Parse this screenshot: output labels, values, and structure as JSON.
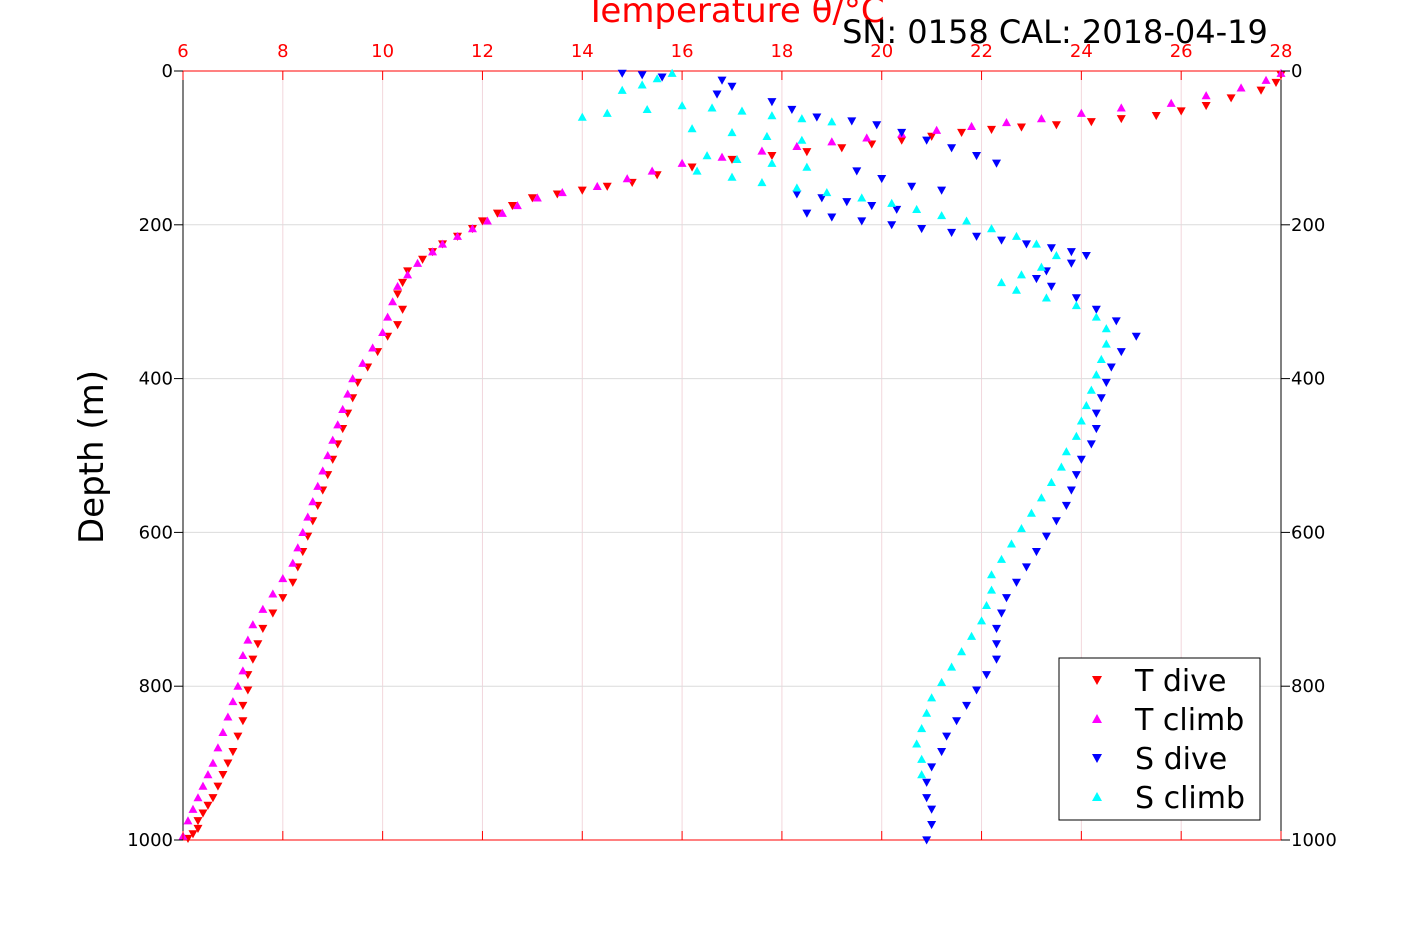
{
  "chart_data": {
    "type": "scatter",
    "title": "SN: 0158  CAL: 2018-04-19",
    "xlabel": "Temperature θ/°C",
    "ylabel": "Depth (m)",
    "xlim": [
      6,
      28
    ],
    "ylim": [
      0,
      1000
    ],
    "y_reversed": true,
    "x_axis_position": "top",
    "x_ticks": [
      6,
      8,
      10,
      12,
      14,
      16,
      18,
      20,
      22,
      24,
      26,
      28
    ],
    "y_ticks": [
      0,
      200,
      400,
      600,
      800,
      1000
    ],
    "grid": true,
    "legend_position": "bottom-right",
    "colors": {
      "x_axis": "#ff0000",
      "grid": "#d9d9d9",
      "frame": "#000000"
    },
    "series": [
      {
        "name": "T dive",
        "marker": "triangle-down",
        "color": "#ff0000",
        "x": [
          28.0,
          27.9,
          27.6,
          27.0,
          26.5,
          26.0,
          25.5,
          24.8,
          24.2,
          23.5,
          22.8,
          22.2,
          21.6,
          21.0,
          20.4,
          19.8,
          19.2,
          18.5,
          17.8,
          17.0,
          16.2,
          15.5,
          15.0,
          14.5,
          14.0,
          13.5,
          13.0,
          12.6,
          12.3,
          12.0,
          11.8,
          11.5,
          11.2,
          11.0,
          10.8,
          10.5,
          10.4,
          10.3,
          10.4,
          10.3,
          10.1,
          9.9,
          9.7,
          9.5,
          9.4,
          9.3,
          9.2,
          9.1,
          9.0,
          8.9,
          8.8,
          8.7,
          8.6,
          8.5,
          8.4,
          8.3,
          8.2,
          8.0,
          7.8,
          7.6,
          7.5,
          7.4,
          7.3,
          7.3,
          7.2,
          7.2,
          7.1,
          7.0,
          6.9,
          6.8,
          6.7,
          6.6,
          6.5,
          6.4,
          6.3,
          6.3,
          6.2,
          6.1
        ],
        "y": [
          5,
          15,
          25,
          35,
          45,
          52,
          58,
          62,
          66,
          70,
          73,
          76,
          80,
          85,
          90,
          95,
          100,
          105,
          110,
          115,
          125,
          135,
          145,
          150,
          155,
          160,
          165,
          175,
          185,
          195,
          205,
          215,
          225,
          235,
          245,
          260,
          275,
          290,
          310,
          330,
          345,
          365,
          385,
          405,
          425,
          445,
          465,
          485,
          505,
          525,
          545,
          565,
          585,
          605,
          625,
          645,
          665,
          685,
          705,
          725,
          745,
          765,
          785,
          805,
          825,
          845,
          865,
          885,
          900,
          915,
          930,
          945,
          955,
          965,
          975,
          985,
          992,
          998
        ]
      },
      {
        "name": "T climb",
        "marker": "triangle-up",
        "color": "#ff00ff",
        "x": [
          28.0,
          27.7,
          27.2,
          26.5,
          25.8,
          24.8,
          24.0,
          23.2,
          22.5,
          21.8,
          21.1,
          20.4,
          19.7,
          19.0,
          18.3,
          17.6,
          16.8,
          16.0,
          15.4,
          14.9,
          14.3,
          13.6,
          13.1,
          12.7,
          12.4,
          12.1,
          11.8,
          11.5,
          11.2,
          11.0,
          10.7,
          10.5,
          10.3,
          10.2,
          10.1,
          10.0,
          9.8,
          9.6,
          9.4,
          9.3,
          9.2,
          9.1,
          9.0,
          8.9,
          8.8,
          8.7,
          8.6,
          8.5,
          8.4,
          8.3,
          8.2,
          8.0,
          7.8,
          7.6,
          7.4,
          7.3,
          7.2,
          7.2,
          7.1,
          7.0,
          6.9,
          6.8,
          6.7,
          6.6,
          6.5,
          6.4,
          6.3,
          6.2,
          6.1,
          6.0
        ],
        "y": [
          3,
          12,
          22,
          32,
          42,
          48,
          55,
          62,
          67,
          72,
          77,
          82,
          87,
          92,
          98,
          104,
          112,
          120,
          130,
          140,
          150,
          158,
          165,
          175,
          185,
          195,
          205,
          215,
          225,
          235,
          250,
          265,
          280,
          300,
          320,
          340,
          360,
          380,
          400,
          420,
          440,
          460,
          480,
          500,
          520,
          540,
          560,
          580,
          600,
          620,
          640,
          660,
          680,
          700,
          720,
          740,
          760,
          780,
          800,
          820,
          840,
          860,
          880,
          900,
          915,
          930,
          945,
          960,
          975,
          995
        ]
      },
      {
        "name": "S dive",
        "marker": "triangle-down",
        "color": "#0000ff",
        "x": [
          14.8,
          15.2,
          15.6,
          16.8,
          17.0,
          16.7,
          17.8,
          18.2,
          18.7,
          19.4,
          19.9,
          20.4,
          20.9,
          21.4,
          21.9,
          22.3,
          19.5,
          20.0,
          20.6,
          21.2,
          18.3,
          18.8,
          19.3,
          19.8,
          20.3,
          18.5,
          19.0,
          19.6,
          20.2,
          20.8,
          21.4,
          21.9,
          22.4,
          22.9,
          23.4,
          23.8,
          24.1,
          23.8,
          23.3,
          23.1,
          23.4,
          23.9,
          24.3,
          24.7,
          25.1,
          24.8,
          24.6,
          24.5,
          24.4,
          24.3,
          24.3,
          24.2,
          24.0,
          23.9,
          23.8,
          23.7,
          23.5,
          23.3,
          23.1,
          22.9,
          22.7,
          22.5,
          22.4,
          22.3,
          22.3,
          22.3,
          22.1,
          21.9,
          21.7,
          21.5,
          21.3,
          21.2,
          21.0,
          20.9,
          20.9,
          21.0,
          21.0,
          20.9
        ],
        "y": [
          3,
          5,
          8,
          12,
          20,
          30,
          40,
          50,
          60,
          65,
          70,
          80,
          90,
          100,
          110,
          120,
          130,
          140,
          150,
          155,
          160,
          165,
          170,
          175,
          180,
          185,
          190,
          195,
          200,
          205,
          210,
          215,
          220,
          225,
          230,
          235,
          240,
          250,
          260,
          270,
          280,
          295,
          310,
          325,
          345,
          365,
          385,
          405,
          425,
          445,
          465,
          485,
          505,
          525,
          545,
          565,
          585,
          605,
          625,
          645,
          665,
          685,
          705,
          725,
          745,
          765,
          785,
          805,
          825,
          845,
          865,
          885,
          905,
          925,
          945,
          960,
          980,
          1000
        ]
      },
      {
        "name": "S climb",
        "marker": "triangle-up",
        "color": "#00ffff",
        "x": [
          15.8,
          15.5,
          15.2,
          14.8,
          14.0,
          14.5,
          15.3,
          16.0,
          16.6,
          17.2,
          17.8,
          18.4,
          19.0,
          16.2,
          17.0,
          17.7,
          18.4,
          16.5,
          17.1,
          17.8,
          18.5,
          16.3,
          17.0,
          17.6,
          18.3,
          18.9,
          19.6,
          20.2,
          20.7,
          21.2,
          21.7,
          22.2,
          22.7,
          23.1,
          23.5,
          23.2,
          22.8,
          22.4,
          22.7,
          23.3,
          23.9,
          24.3,
          24.5,
          24.5,
          24.4,
          24.3,
          24.2,
          24.1,
          24.0,
          23.9,
          23.7,
          23.6,
          23.4,
          23.2,
          23.0,
          22.8,
          22.6,
          22.4,
          22.2,
          22.2,
          22.1,
          22.0,
          21.8,
          21.6,
          21.4,
          21.2,
          21.0,
          20.9,
          20.8,
          20.7,
          20.8,
          20.8
        ],
        "y": [
          3,
          10,
          18,
          25,
          60,
          55,
          50,
          45,
          48,
          52,
          58,
          62,
          66,
          75,
          80,
          85,
          90,
          110,
          115,
          120,
          125,
          130,
          138,
          145,
          152,
          158,
          165,
          172,
          180,
          188,
          195,
          205,
          215,
          225,
          240,
          255,
          265,
          275,
          285,
          295,
          305,
          320,
          335,
          355,
          375,
          395,
          415,
          435,
          455,
          475,
          495,
          515,
          535,
          555,
          575,
          595,
          615,
          635,
          655,
          675,
          695,
          715,
          735,
          755,
          775,
          795,
          815,
          835,
          855,
          875,
          895,
          915
        ]
      }
    ]
  }
}
